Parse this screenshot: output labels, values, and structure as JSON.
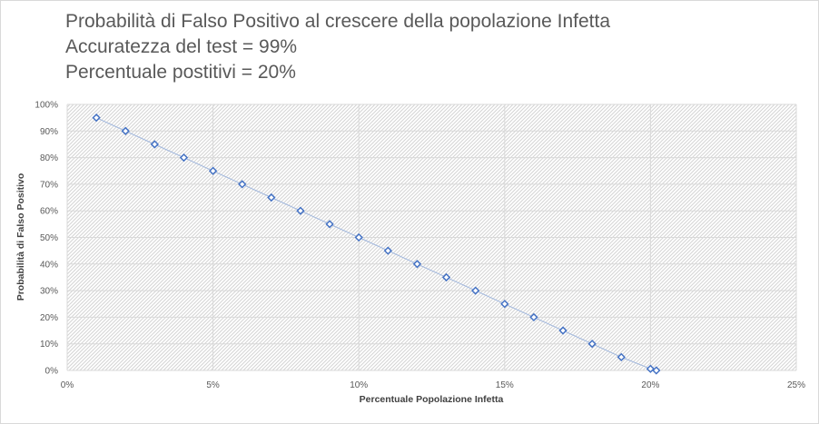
{
  "chart_data": {
    "type": "scatter",
    "title_lines": [
      "Probabilità di Falso Positivo al crescere della popolazione Infetta",
      "Accuratezza del test = 99%",
      "Percentuale postitivi = 20%"
    ],
    "xlabel": "Percentuale  Popolazione  Infetta",
    "ylabel": "Probabilità  di Falso Positivo",
    "xlim": [
      0,
      25
    ],
    "ylim": [
      0,
      100
    ],
    "x_ticks": [
      "0%",
      "5%",
      "10%",
      "15%",
      "20%",
      "25%"
    ],
    "x_tick_values": [
      0,
      5,
      10,
      15,
      20,
      25
    ],
    "y_ticks": [
      "0%",
      "10%",
      "20%",
      "30%",
      "40%",
      "50%",
      "60%",
      "70%",
      "80%",
      "90%",
      "100%"
    ],
    "y_tick_values": [
      0,
      10,
      20,
      30,
      40,
      50,
      60,
      70,
      80,
      90,
      100
    ],
    "grid": true,
    "series": [
      {
        "name": "Probabilità di Falso Positivo",
        "color": "#4472c4",
        "line_color": "#9fb6dd",
        "marker": "diamond",
        "x": [
          1,
          2,
          3,
          4,
          5,
          6,
          7,
          8,
          9,
          10,
          11,
          12,
          13,
          14,
          15,
          16,
          17,
          18,
          19,
          20,
          20.2
        ],
        "y": [
          95,
          90,
          85,
          80,
          75,
          70,
          65,
          60,
          55,
          50,
          45,
          40,
          35,
          30,
          25,
          20,
          15,
          10,
          5,
          0.6,
          0
        ]
      }
    ]
  }
}
